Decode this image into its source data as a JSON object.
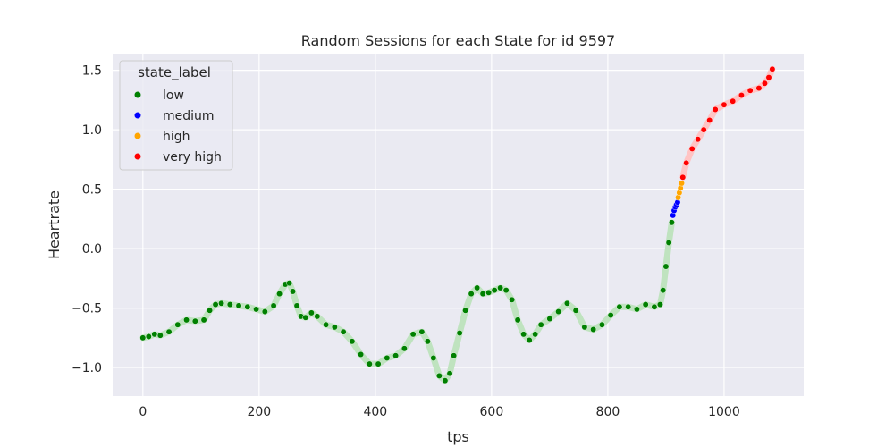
{
  "chart_data": {
    "type": "scatter",
    "title": "Random Sessions for each State for id 9597",
    "xlabel": "tps",
    "ylabel": "Heartrate",
    "xlim": [
      -52,
      1137
    ],
    "ylim": [
      -1.24,
      1.64
    ],
    "xticks": [
      0,
      200,
      400,
      600,
      800,
      1000
    ],
    "yticks": [
      -1.0,
      -0.5,
      0.0,
      0.5,
      1.0,
      1.5
    ],
    "xtick_labels": [
      "0",
      "200",
      "400",
      "600",
      "800",
      "1000"
    ],
    "ytick_labels": [
      "−1.0",
      "−0.5",
      "0.0",
      "0.5",
      "1.0",
      "1.5"
    ],
    "grid": true,
    "legend": {
      "title": "state_label",
      "placement": "upper-left",
      "entries": [
        {
          "label": "low",
          "color": "#008000"
        },
        {
          "label": "medium",
          "color": "#0000ff"
        },
        {
          "label": "high",
          "color": "#ffa500"
        },
        {
          "label": "very high",
          "color": "#ff0000"
        }
      ]
    },
    "series": [
      {
        "name": "low",
        "color": "#008000",
        "x": [
          0,
          10,
          20,
          30,
          45,
          60,
          75,
          90,
          105,
          115,
          125,
          135,
          150,
          165,
          180,
          195,
          210,
          225,
          235,
          245,
          252,
          258,
          265,
          272,
          280,
          290,
          300,
          315,
          330,
          345,
          360,
          375,
          390,
          405,
          420,
          435,
          450,
          465,
          480,
          490,
          500,
          510,
          520,
          528,
          535,
          545,
          555,
          565,
          575,
          585,
          595,
          605,
          615,
          625,
          635,
          645,
          655,
          665,
          675,
          685,
          700,
          715,
          730,
          745,
          760,
          775,
          790,
          805,
          820,
          835,
          850,
          865,
          880,
          890,
          895,
          900,
          905,
          910
        ],
        "y": [
          -0.75,
          -0.74,
          -0.72,
          -0.73,
          -0.7,
          -0.64,
          -0.6,
          -0.61,
          -0.6,
          -0.52,
          -0.47,
          -0.46,
          -0.47,
          -0.48,
          -0.49,
          -0.51,
          -0.53,
          -0.48,
          -0.38,
          -0.3,
          -0.29,
          -0.36,
          -0.48,
          -0.57,
          -0.58,
          -0.54,
          -0.57,
          -0.64,
          -0.66,
          -0.7,
          -0.78,
          -0.89,
          -0.97,
          -0.97,
          -0.92,
          -0.9,
          -0.84,
          -0.72,
          -0.7,
          -0.78,
          -0.92,
          -1.07,
          -1.11,
          -1.05,
          -0.9,
          -0.71,
          -0.52,
          -0.38,
          -0.33,
          -0.38,
          -0.37,
          -0.35,
          -0.33,
          -0.35,
          -0.43,
          -0.6,
          -0.72,
          -0.77,
          -0.72,
          -0.64,
          -0.59,
          -0.53,
          -0.46,
          -0.52,
          -0.66,
          -0.68,
          -0.64,
          -0.56,
          -0.49,
          -0.49,
          -0.51,
          -0.47,
          -0.49,
          -0.47,
          -0.35,
          -0.15,
          0.05,
          0.22
        ]
      },
      {
        "name": "medium",
        "color": "#0000ff",
        "x": [
          912,
          914,
          916,
          918,
          920
        ],
        "y": [
          0.28,
          0.32,
          0.35,
          0.37,
          0.39
        ]
      },
      {
        "name": "high",
        "color": "#ffa500",
        "x": [
          921,
          923,
          925,
          927
        ],
        "y": [
          0.43,
          0.47,
          0.51,
          0.55
        ]
      },
      {
        "name": "very high",
        "color": "#ff0000",
        "x": [
          929,
          935,
          945,
          955,
          965,
          975,
          985,
          1000,
          1015,
          1030,
          1045,
          1060,
          1070,
          1077,
          1083
        ],
        "y": [
          0.6,
          0.72,
          0.84,
          0.92,
          1.0,
          1.08,
          1.17,
          1.21,
          1.24,
          1.29,
          1.33,
          1.35,
          1.39,
          1.44,
          1.51
        ]
      }
    ]
  }
}
